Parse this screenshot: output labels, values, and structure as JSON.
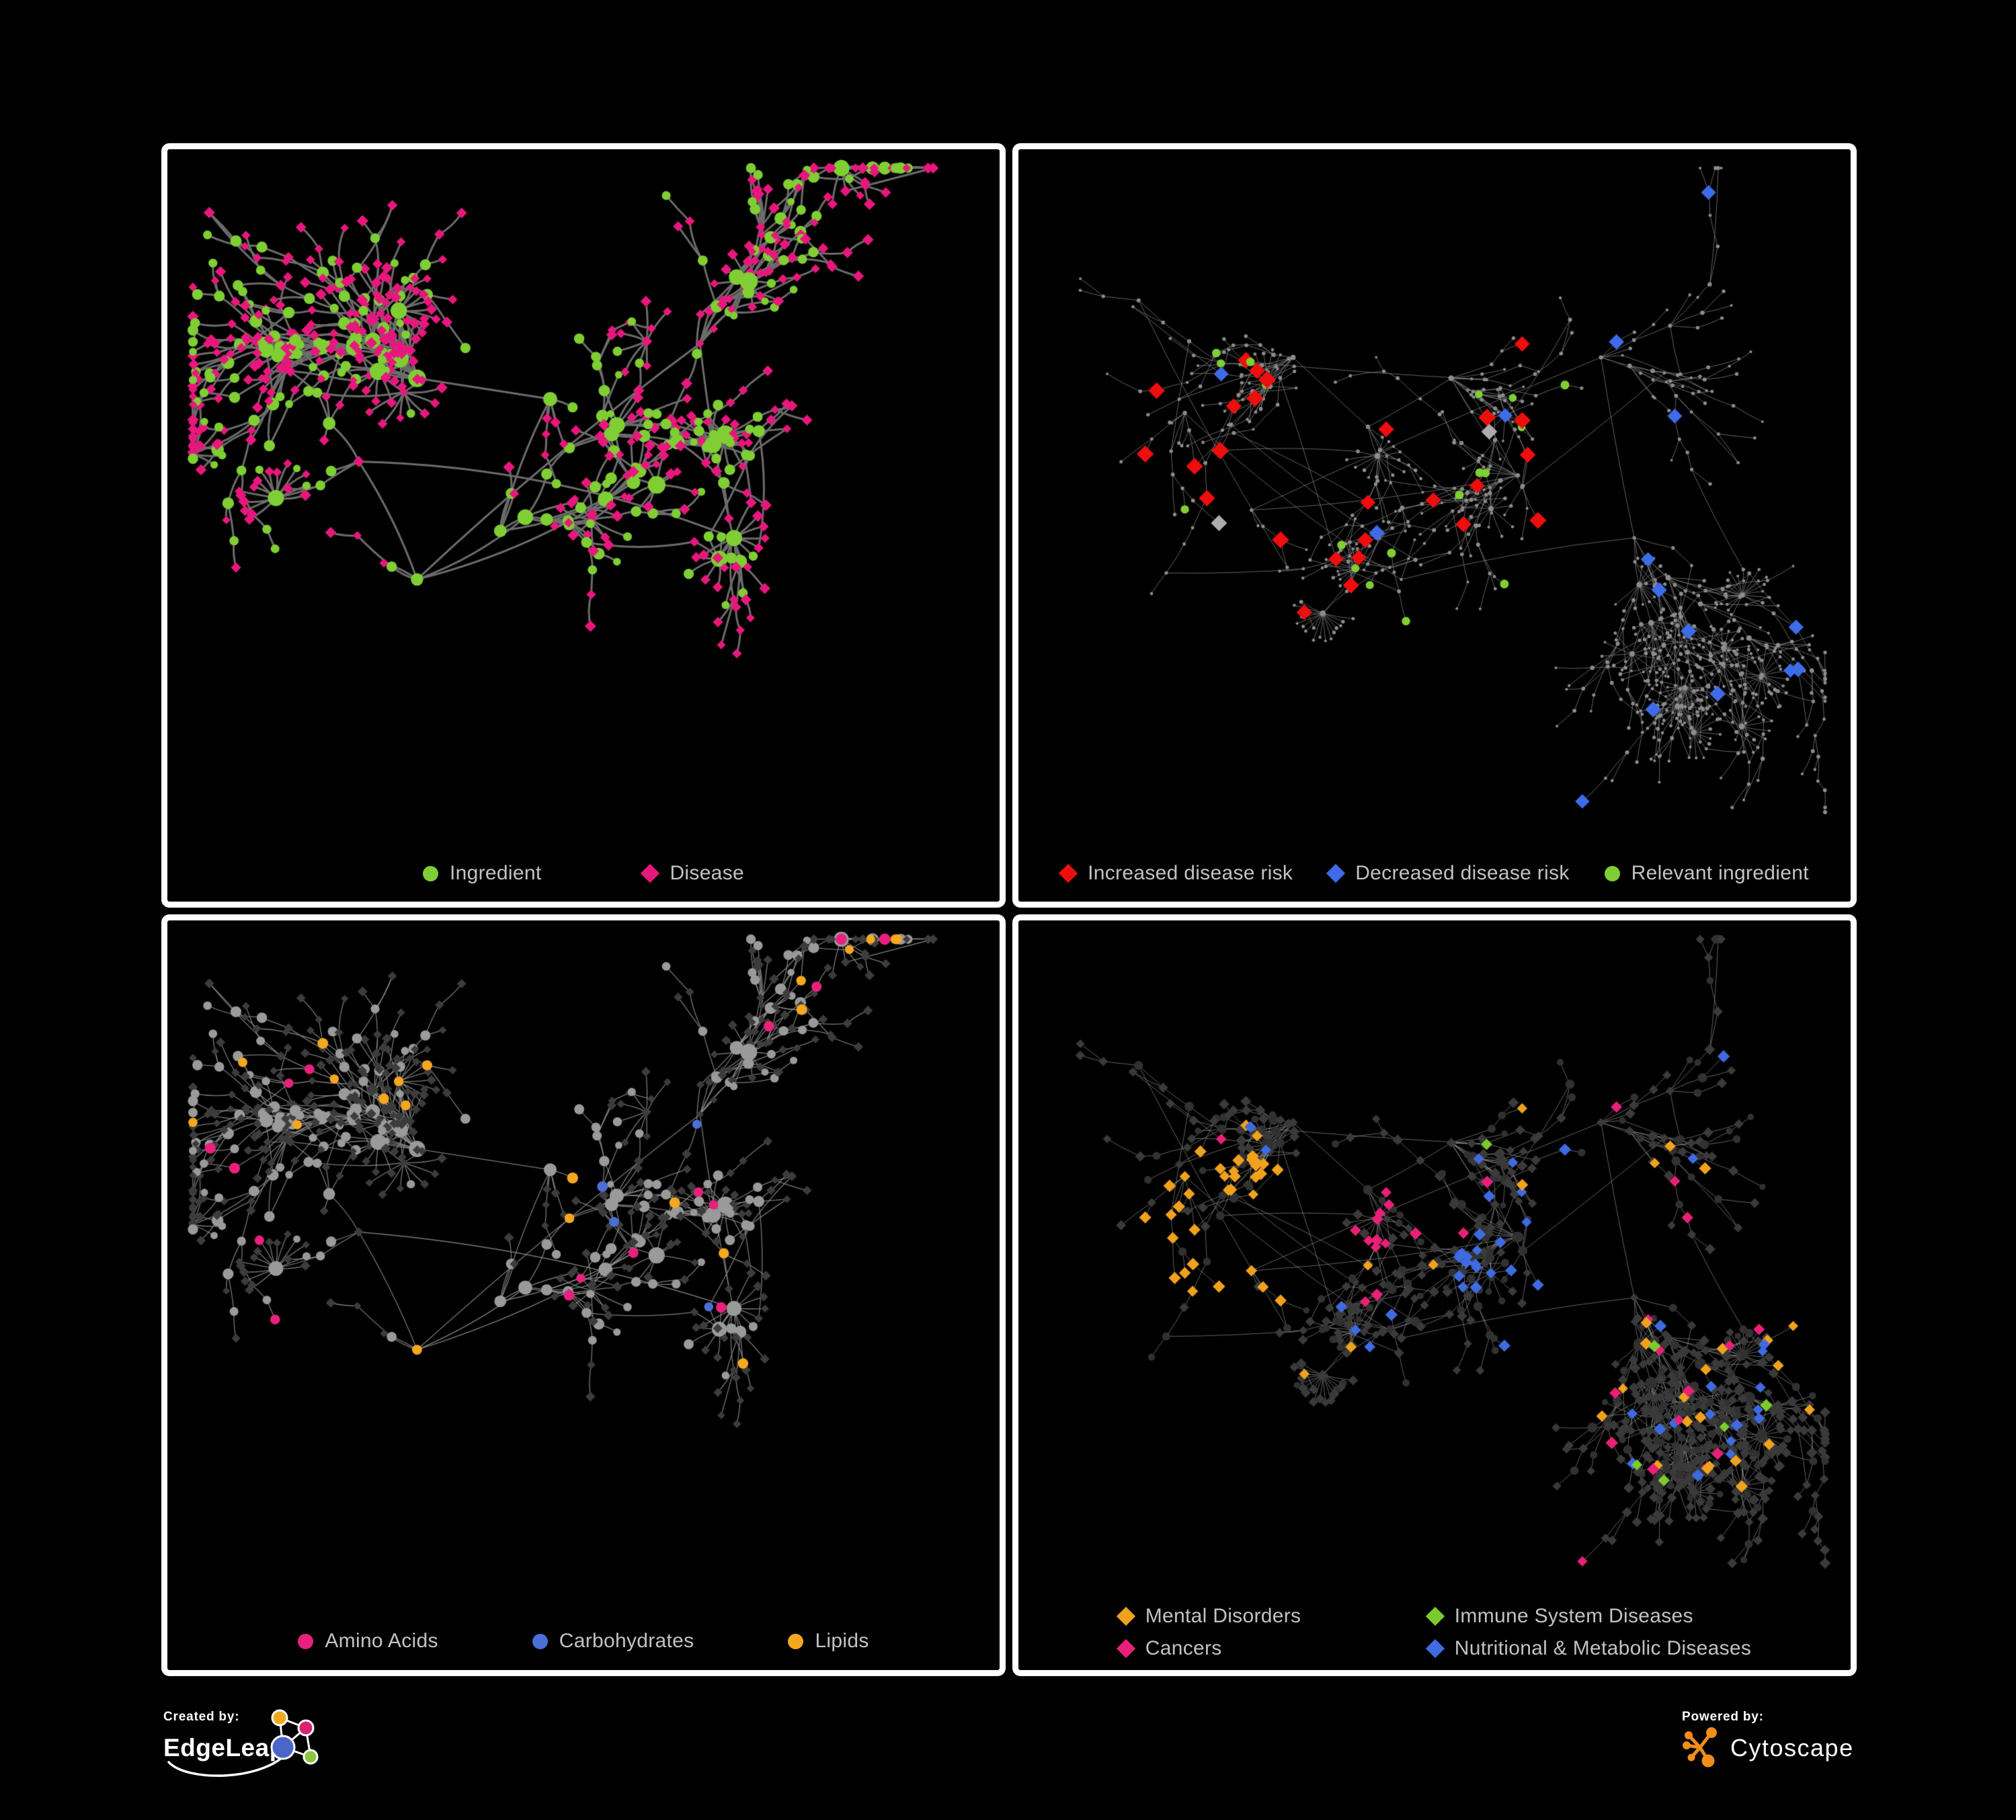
{
  "page": {
    "background": "#000000",
    "panel_border_color": "#ffffff",
    "panel_background": "#000000",
    "legend_text_color": "#c2c2c2"
  },
  "footer": {
    "created_by_label": "Created by:",
    "edgeleap_name": "EdgeLeap",
    "powered_by_label": "Powered by:",
    "cytoscape_name": "Cytoscape",
    "colors": {
      "edgeleap_orange": "#F2A81D",
      "edgeleap_magenta": "#D6246E",
      "edgeleap_blue": "#4A67C7",
      "edgeleap_green": "#8CC63F",
      "cytoscape_orange": "#F28D1C",
      "text_white": "#ffffff"
    }
  },
  "chart_data": [
    {
      "type": "network",
      "panel": "top-left",
      "legend_layout": "row",
      "legend": [
        {
          "label": "Ingredient",
          "color": "#7FCE33",
          "shape": "circle"
        },
        {
          "label": "Disease",
          "color": "#E8177D",
          "shape": "diamond"
        }
      ],
      "node_count_estimate": 520,
      "edge_style": {
        "color": "#6C6C6C",
        "width": 3.0,
        "alpha": 1,
        "curve": 0.12
      },
      "gen": {
        "seed": 42,
        "node_count": 520,
        "cluster_centers": [
          [
            0.3,
            0.33
          ],
          [
            0.46,
            0.36
          ],
          [
            0.4,
            0.55
          ],
          [
            0.56,
            0.48
          ],
          [
            0.3,
            0.62
          ],
          [
            0.64,
            0.28
          ],
          [
            0.68,
            0.56
          ],
          [
            0.23,
            0.45
          ]
        ],
        "parent_bias": 1.7,
        "chain_p": 0.38,
        "branch_spread": 1.5,
        "step": 52,
        "decay": 0.97,
        "fan_count": 15,
        "fan_k": [
          7,
          16
        ],
        "fan_radius": 46,
        "cross_frac": 0.05,
        "cross_dist": 0.16
      },
      "coloring": {
        "hub_degree": 3,
        "disease_hub_p": 0.3,
        "disease_leaf_p": 0.74,
        "disease_base": {
          "shape": "diamond",
          "color": "#E8177D",
          "size": 5,
          "size_var": 2
        },
        "ingredient_base": {
          "shape": "circle",
          "color": "#7FCE33",
          "size": 4.5,
          "size_var": 2.5,
          "deg_mul": 0.9,
          "deg_cap": 7
        },
        "groups": []
      }
    },
    {
      "type": "network",
      "panel": "top-right",
      "legend_layout": "row",
      "legend": [
        {
          "label": "Increased disease risk",
          "color": "#EE0E0E",
          "shape": "diamond"
        },
        {
          "label": "Decreased disease risk",
          "color": "#3E6BE8",
          "shape": "diamond"
        },
        {
          "label": "Relevant ingredient",
          "color": "#7FCE33",
          "shape": "circle"
        }
      ],
      "node_count_estimate": 660,
      "edge_style": {
        "color": "#7A7A7A",
        "width": 1.0,
        "alpha": 0.8,
        "curve": 0.05
      },
      "gen": {
        "seed": 77,
        "node_count": 660,
        "cluster_centers": [
          [
            0.33,
            0.3
          ],
          [
            0.42,
            0.4
          ],
          [
            0.52,
            0.33
          ],
          [
            0.6,
            0.47
          ],
          [
            0.28,
            0.52
          ],
          [
            0.7,
            0.3
          ],
          [
            0.74,
            0.56
          ],
          [
            0.46,
            0.62
          ],
          [
            0.2,
            0.38
          ]
        ],
        "parent_bias": 1.55,
        "chain_p": 0.42,
        "branch_spread": 1.4,
        "step": 44,
        "decay": 0.975,
        "fan_count": 18,
        "fan_k": [
          8,
          20
        ],
        "fan_radius": 36,
        "cross_frac": 0.1,
        "cross_dist": 0.38
      },
      "coloring": {
        "hub_degree": 3,
        "disease_hub_p": 0.3,
        "disease_leaf_p": 0.74,
        "disease_base": {
          "shape": "circle",
          "color": "#8C8C8C",
          "size": 1.7,
          "size_var": 0.9,
          "deg_mul": 0.2,
          "deg_cap": 2
        },
        "ingredient_base": {
          "shape": "circle",
          "color": "#8C8C8C",
          "size": 1.7,
          "size_var": 0.9,
          "deg_mul": 0.2,
          "deg_cap": 2
        },
        "groups": [
          {
            "applies": "any",
            "shape": "diamond",
            "color": "#EE0E0E",
            "size": 9,
            "size_var": 1.5,
            "c0": 0,
            "c1": 0.065,
            "cx": 0.4,
            "cy": 0.38,
            "r": 0.26
          },
          {
            "applies": "any",
            "shape": "diamond",
            "color": "#3E6BE8",
            "size": 8.5,
            "size_var": 1.2,
            "c0": 0.065,
            "c1": 0.085,
            "cx": 0.48,
            "cy": 0.4,
            "r": 0.55
          },
          {
            "applies": "any",
            "shape": "diamond",
            "color": "#ACACAC",
            "size": 8.5,
            "size_var": 1.2,
            "c0": 0.085,
            "c1": 0.105,
            "cx": 0.38,
            "cy": 0.4,
            "r": 0.27
          },
          {
            "applies": "any",
            "shape": "circle",
            "color": "#7FCE33",
            "size": 5.5,
            "size_var": 1.2,
            "c0": 0.105,
            "c1": 0.15,
            "cx": 0.42,
            "cy": 0.4,
            "r": 0.36
          }
        ]
      }
    },
    {
      "type": "network",
      "panel": "bottom-left",
      "legend_layout": "row",
      "legend": [
        {
          "label": "Amino Acids",
          "color": "#E8217C",
          "shape": "circle"
        },
        {
          "label": "Carbohydrates",
          "color": "#4A6FD8",
          "shape": "circle"
        },
        {
          "label": "Lipids",
          "color": "#F5A81F",
          "shape": "circle"
        }
      ],
      "node_count_estimate": 520,
      "edge_style": {
        "color": "#8E8E8E",
        "width": 1.3,
        "alpha": 0.85,
        "curve": 0.08
      },
      "gen": {
        "seed": 42,
        "node_count": 520,
        "cluster_centers": [
          [
            0.3,
            0.33
          ],
          [
            0.46,
            0.36
          ],
          [
            0.4,
            0.55
          ],
          [
            0.56,
            0.48
          ],
          [
            0.3,
            0.62
          ],
          [
            0.64,
            0.28
          ],
          [
            0.68,
            0.56
          ],
          [
            0.23,
            0.45
          ]
        ],
        "parent_bias": 1.7,
        "chain_p": 0.38,
        "branch_spread": 1.5,
        "step": 52,
        "decay": 0.97,
        "fan_count": 15,
        "fan_k": [
          7,
          16
        ],
        "fan_radius": 46,
        "cross_frac": 0.05,
        "cross_dist": 0.16
      },
      "coloring": {
        "hub_degree": 3,
        "disease_hub_p": 0.3,
        "disease_leaf_p": 0.74,
        "disease_base": {
          "shape": "diamond",
          "color": "#3C3C3C",
          "size": 4.5,
          "size_var": 1.5
        },
        "ingredient_base": {
          "shape": "circle",
          "color": "#9A9A9A",
          "size": 4.5,
          "size_var": 2.5,
          "deg_mul": 0.7,
          "deg_cap": 6
        },
        "groups": [
          {
            "applies": "ingredient",
            "shape": "circle",
            "color": "#F5A81F",
            "size": 6.5,
            "size_var": 2,
            "c0": 0,
            "c1": 0.8,
            "cx": 0.37,
            "cy": 0.26,
            "r": 0.085
          },
          {
            "applies": "ingredient",
            "shape": "circle",
            "color": "#F5A81F",
            "size": 6.5,
            "size_var": 2,
            "c0": 0,
            "c1": 0.12,
            "cx": 0.5,
            "cy": 0.5,
            "r": 0.65
          },
          {
            "applies": "ingredient",
            "shape": "circle",
            "color": "#E8217C",
            "size": 6.5,
            "size_var": 2,
            "c0": 0.12,
            "c1": 0.2,
            "cx": 0.5,
            "cy": 0.52,
            "r": 0.65
          },
          {
            "applies": "ingredient",
            "shape": "circle",
            "color": "#4A6FD8",
            "size": 6.5,
            "size_var": 1.5,
            "c0": 0.2,
            "c1": 0.26,
            "cx": 0.38,
            "cy": 0.3,
            "r": 0.17
          },
          {
            "applies": "ingredient",
            "shape": "circle",
            "color": "#4A6FD8",
            "size": 6,
            "size_var": 1.5,
            "c0": 0.2,
            "c1": 0.215,
            "cx": 0.6,
            "cy": 0.6,
            "r": 0.45
          }
        ]
      }
    },
    {
      "type": "network",
      "panel": "bottom-right",
      "legend_layout": "grid-2col",
      "legend": [
        {
          "label": "Mental Disorders",
          "color": "#F0A21F",
          "shape": "diamond"
        },
        {
          "label": "Immune System Diseases",
          "color": "#7CCB2D",
          "shape": "diamond"
        },
        {
          "label": "Cancers",
          "color": "#E82178",
          "shape": "diamond"
        },
        {
          "label": "Nutritional & Metabolic Diseases",
          "color": "#3E6BE0",
          "shape": "diamond"
        }
      ],
      "node_count_estimate": 660,
      "edge_style": {
        "color": "#9C9C9C",
        "width": 0.9,
        "alpha": 0.7,
        "curve": 0.04
      },
      "gen": {
        "seed": 77,
        "node_count": 660,
        "cluster_centers": [
          [
            0.33,
            0.3
          ],
          [
            0.42,
            0.4
          ],
          [
            0.52,
            0.33
          ],
          [
            0.6,
            0.47
          ],
          [
            0.28,
            0.52
          ],
          [
            0.7,
            0.3
          ],
          [
            0.74,
            0.56
          ],
          [
            0.46,
            0.62
          ],
          [
            0.2,
            0.38
          ]
        ],
        "parent_bias": 1.55,
        "chain_p": 0.42,
        "branch_spread": 1.4,
        "step": 44,
        "decay": 0.975,
        "fan_count": 18,
        "fan_k": [
          8,
          20
        ],
        "fan_radius": 36,
        "cross_frac": 0.1,
        "cross_dist": 0.38
      },
      "coloring": {
        "hub_degree": 3,
        "disease_hub_p": 0.6,
        "disease_leaf_p": 0.8,
        "disease_base": {
          "shape": "diamond",
          "color": "#3A3A3A",
          "size": 5,
          "size_var": 1.5
        },
        "ingredient_base": {
          "shape": "circle",
          "color": "#313131",
          "size": 4,
          "size_var": 1.5,
          "deg_mul": 0.5,
          "deg_cap": 4
        },
        "groups": [
          {
            "applies": "disease",
            "shape": "diamond",
            "color": "#F0A21F",
            "size": 6,
            "size_var": 1.5,
            "c0": 0,
            "c1": 0.8,
            "cx": 0.255,
            "cy": 0.46,
            "r": 0.105
          },
          {
            "applies": "disease",
            "shape": "diamond",
            "color": "#E82178",
            "size": 6,
            "size_var": 1.5,
            "c0": 0,
            "c1": 0.5,
            "cx": 0.47,
            "cy": 0.4,
            "r": 0.09
          },
          {
            "applies": "disease",
            "shape": "diamond",
            "color": "#3E6BE0",
            "size": 6,
            "size_var": 1.5,
            "c0": 0,
            "c1": 0.5,
            "cx": 0.585,
            "cy": 0.52,
            "r": 0.07
          },
          {
            "applies": "disease",
            "shape": "diamond",
            "color": "#F0A21F",
            "size": 6,
            "size_var": 1.5,
            "c0": 0,
            "c1": 0.05,
            "cx": 0.5,
            "cy": 0.45,
            "r": 0.6
          },
          {
            "applies": "disease",
            "shape": "diamond",
            "color": "#E82178",
            "size": 6,
            "size_var": 1.5,
            "c0": 0.05,
            "c1": 0.085,
            "cx": 0.45,
            "cy": 0.5,
            "r": 0.5
          },
          {
            "applies": "disease",
            "shape": "diamond",
            "color": "#3E6BE0",
            "size": 6,
            "size_var": 1.5,
            "c0": 0.085,
            "c1": 0.15,
            "cx": 0.62,
            "cy": 0.38,
            "r": 0.42
          },
          {
            "applies": "disease",
            "shape": "diamond",
            "color": "#7CCB2D",
            "size": 6,
            "size_var": 1.5,
            "c0": 0.15,
            "c1": 0.165,
            "cx": 0.5,
            "cy": 0.45,
            "r": 0.5
          }
        ]
      }
    }
  ]
}
